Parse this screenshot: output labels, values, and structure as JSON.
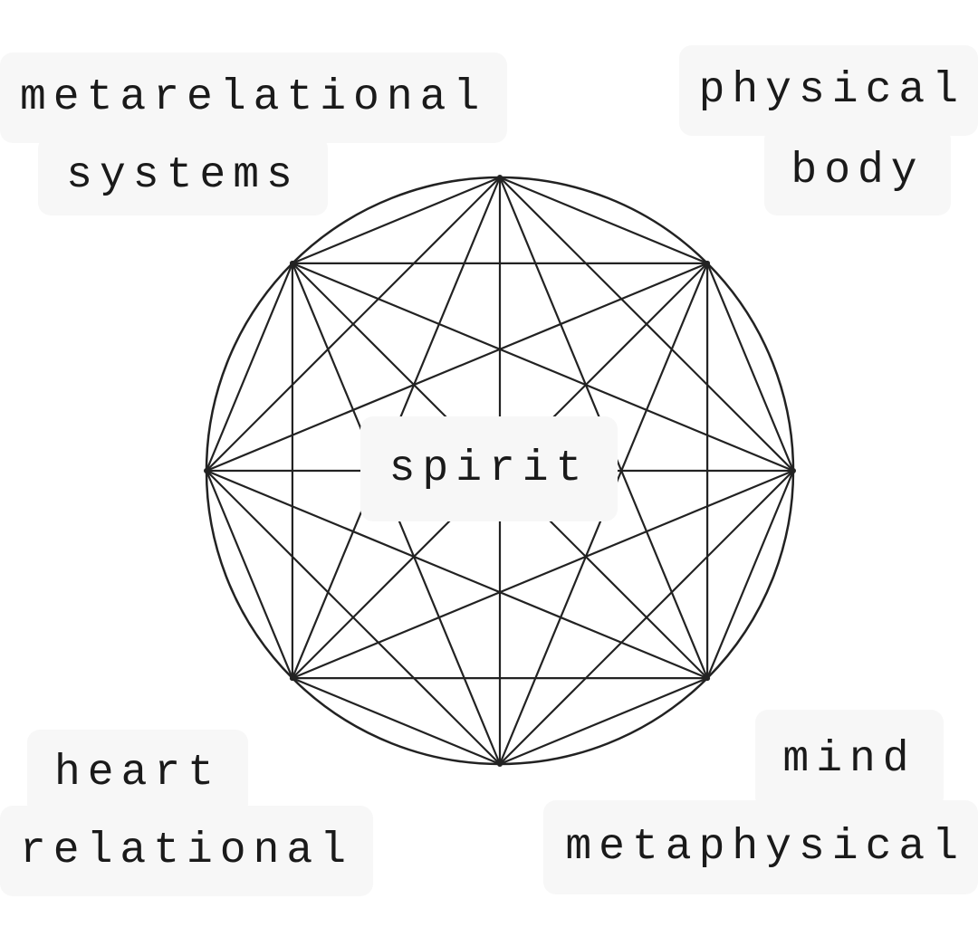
{
  "labels": {
    "top_left_line1": "metarelational",
    "top_left_line2": "systems",
    "top_right_line1": "physical",
    "top_right_line2": "body",
    "center": "spirit",
    "bottom_left_line1": "heart",
    "bottom_left_line2": "relational",
    "bottom_right_line1": "mind",
    "bottom_right_line2": "metaphysical"
  },
  "diagram": {
    "shape": "circle with inscribed octagram",
    "vertex_count": 8,
    "stroke_color": "#222222",
    "label_background": "#f7f7f7"
  }
}
